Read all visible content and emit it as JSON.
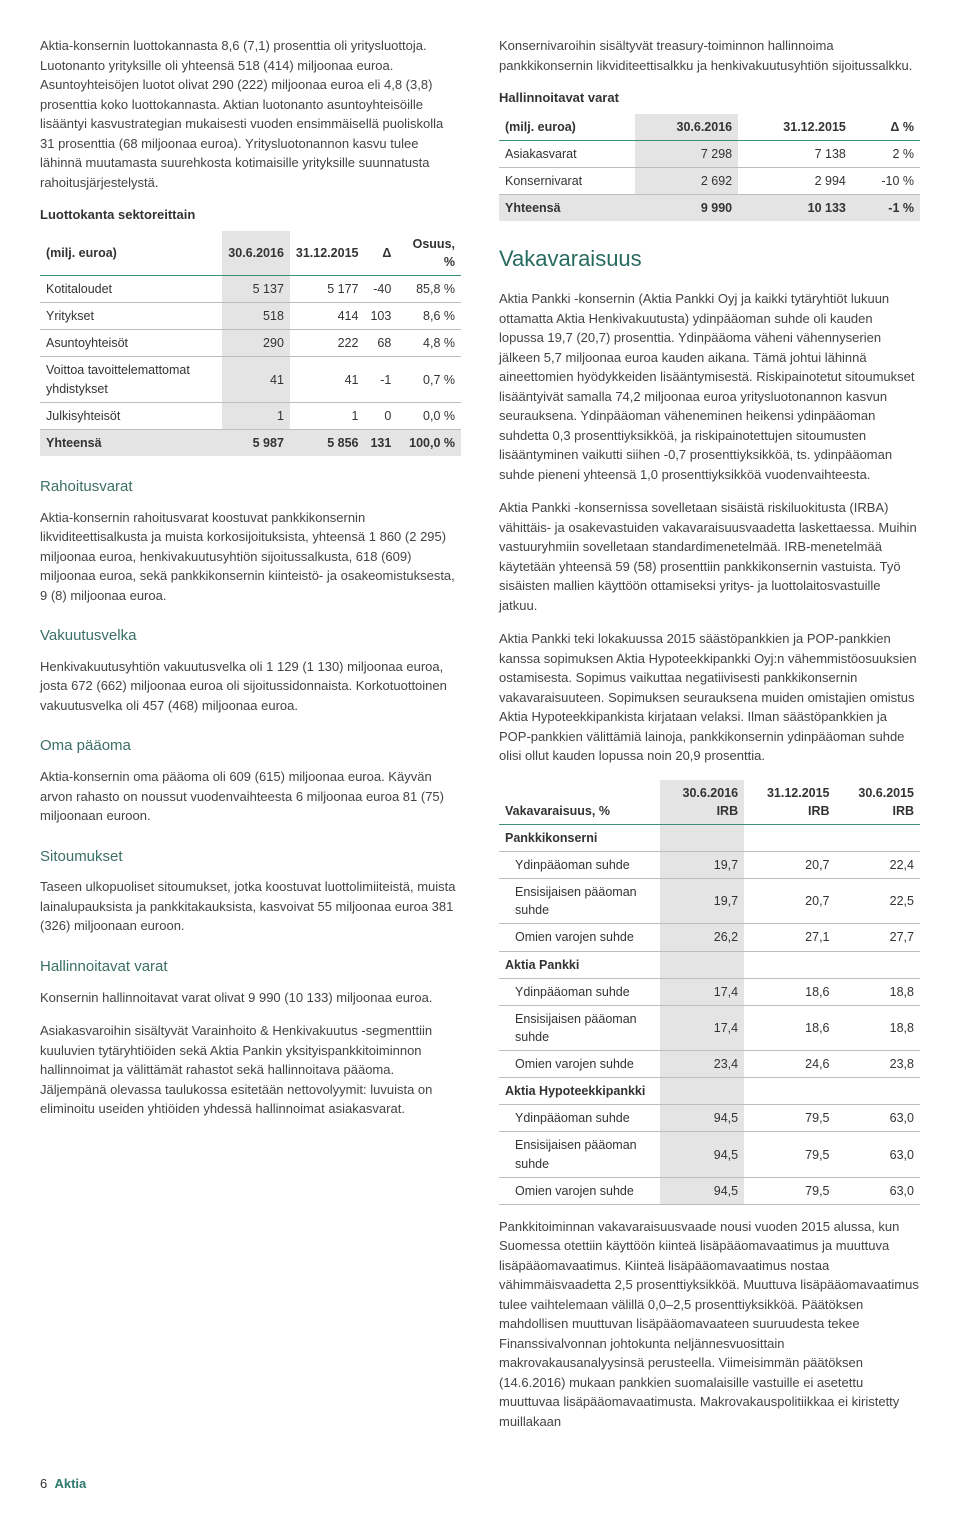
{
  "colors": {
    "heading_green": "#276a5f",
    "subheading_green": "#3b6f66",
    "rule_green": "#3f8d7f",
    "shade_gray": "#e4e4e4",
    "border_gray": "#bdbdbd",
    "body_text": "#333333",
    "background": "#ffffff"
  },
  "left": {
    "para1": "Aktia-konsernin luottokannasta 8,6 (7,1) prosenttia oli yritysluottoja. Luotonanto yrityksille oli yhteensä 518 (414) miljoonaa euroa. Asuntoyhteisöjen luotot olivat 290 (222) miljoonaa euroa eli 4,8 (3,8) prosenttia koko luottokannasta. Aktian luotonanto asuntoyhteisöille lisääntyi kasvustrategian mukaisesti vuoden ensimmäisellä puoliskolla 31 prosenttia (68 miljoonaa euroa). Yritysluotonannon kasvu tulee lähinnä muutamasta suurehkosta kotimaisille yrityksille suunnatusta rahoitusjärjestelystä.",
    "sector_title": "Luottokanta sektoreittain",
    "sector_table": {
      "columns": [
        "(milj. euroa)",
        "30.6.2016",
        "31.12.2015",
        "Δ",
        "Osuus, %"
      ],
      "col_align": [
        "left",
        "right",
        "right",
        "right",
        "right"
      ],
      "rows": [
        [
          "Kotitaloudet",
          "5 137",
          "5 177",
          "-40",
          "85,8 %"
        ],
        [
          "Yritykset",
          "518",
          "414",
          "103",
          "8,6 %"
        ],
        [
          "Asuntoyhteisöt",
          "290",
          "222",
          "68",
          "4,8 %"
        ],
        [
          "Voittoa tavoittelemattomat yhdistykset",
          "41",
          "41",
          "-1",
          "0,7 %"
        ],
        [
          "Julkisyhteisöt",
          "1",
          "1",
          "0",
          "0,0 %"
        ]
      ],
      "total": [
        "Yhteensä",
        "5 987",
        "5 856",
        "131",
        "100,0 %"
      ]
    },
    "h_rahoitusvarat": "Rahoitusvarat",
    "p_rahoitusvarat": "Aktia-konsernin rahoitusvarat koostuvat pankkikonsernin likviditeettisalkusta ja muista korkosijoituksista, yhteensä 1 860 (2 295) miljoonaa euroa, henkivakuutusyhtiön sijoitussalkusta, 618 (609) miljoonaa euroa, sekä pankkikonsernin kiinteistö- ja osakeomistuksesta, 9 (8) miljoonaa euroa.",
    "h_vakuutusvelka": "Vakuutusvelka",
    "p_vakuutusvelka": "Henkivakuutusyhtiön vakuutusvelka oli 1 129 (1 130) miljoonaa euroa, josta 672 (662) miljoonaa euroa oli sijoitussidonnaista. Korkotuottoinen vakuutusvelka oli 457 (468) miljoonaa euroa.",
    "h_oma": "Oma pääoma",
    "p_oma": "Aktia-konsernin oma pääoma oli 609 (615) miljoonaa euroa. Käyvän arvon rahasto on noussut vuodenvaihteesta 6 miljoonaa euroa 81 (75) miljoonaan euroon.",
    "h_sitoumukset": "Sitoumukset",
    "p_sitoumukset": "Taseen ulkopuoliset sitoumukset, jotka koostuvat luottolimiiteistä, muista lainalupauksista ja pankkitakauksista, kasvoivat 55 miljoonaa euroa 381 (326) miljoonaan euroon.",
    "h_hallinnoitavat": "Hallinnoitavat varat",
    "p_hallinnoitavat1": "Konsernin hallinnoitavat varat olivat 9 990 (10 133) miljoonaa euroa.",
    "p_hallinnoitavat2": "Asiakasvaroihin sisältyvät Varainhoito & Henkivakuutus -segmenttiin kuuluvien tytäryhtiöiden sekä Aktia Pankin yksityispankkitoiminnon hallinnoimat ja välittämät rahastot sekä hallinnoitava pääoma. Jäljempänä olevassa taulukossa esitetään nettovolyymit: luvuista on eliminoitu useiden yhtiöiden yhdessä hallinnoimat asiakasvarat."
  },
  "right": {
    "p_top": "Konsernivaroihin sisältyvät treasury-toiminnon hallinnoima pankkikonsernin likviditeettisalkku ja henkivakuutusyhtiön sijoitussalkku.",
    "hv_title": "Hallinnoitavat varat",
    "hv_table": {
      "columns": [
        "(milj. euroa)",
        "30.6.2016",
        "31.12.2015",
        "Δ %"
      ],
      "rows": [
        [
          "Asiakasvarat",
          "7 298",
          "7 138",
          "2 %"
        ],
        [
          "Konsernivarat",
          "2 692",
          "2 994",
          "-10 %"
        ]
      ],
      "total": [
        "Yhteensä",
        "9 990",
        "10 133",
        "-1 %"
      ]
    },
    "h_vaka": "Vakavaraisuus",
    "p_vaka1": "Aktia Pankki -konsernin (Aktia Pankki Oyj ja kaikki tytäryhtiöt lukuun ottamatta Aktia Henkivakuutusta) ydinpääoman suhde oli kauden lopussa 19,7 (20,7) prosenttia. Ydinpääoma väheni vähennyserien jälkeen 5,7 miljoonaa euroa kauden aikana. Tämä johtui lähinnä aineettomien hyödykkeiden lisääntymisestä. Riskipainotetut sitoumukset lisääntyivät samalla 74,2 miljoonaa euroa yritysluotonannon kasvun seurauksena. Ydinpääoman väheneminen heikensi ydinpääoman suhdetta 0,3 prosenttiyksikköä, ja riskipainotettujen sitoumusten lisääntyminen vaikutti siihen -0,7 prosenttiyksikköä, ts. ydinpääoman suhde pieneni yhteensä 1,0 prosenttiyksikköä vuodenvaihteesta.",
    "p_vaka2": "Aktia Pankki -konsernissa sovelletaan sisäistä riskiluokitusta (IRBA) vähittäis- ja osakevastuiden vakavaraisuusvaadetta laskettaessa. Muihin vastuuryhmiin sovelletaan standardimenetelmää. IRB-menetelmää käytetään yhteensä 59 (58) prosenttiin pankkikonsernin vastuista. Työ sisäisten mallien käyttöön ottamiseksi yritys- ja luottolaitosvastuille jatkuu.",
    "p_vaka3": "Aktia Pankki teki lokakuussa 2015 säästöpankkien ja POP-pankkien kanssa sopimuksen Aktia Hypoteekkipankki Oyj:n vähemmistöosuuksien ostamisesta. Sopimus vaikuttaa negatiivisesti pankkikonsernin vakavaraisuuteen. Sopimuksen seurauksena muiden omistajien omistus Aktia Hypoteekkipankista kirjataan velaksi. Ilman säästöpankkien ja POP-pankkien välittämiä lainoja, pankkikonsernin ydinpääoman suhde olisi ollut kauden lopussa noin 20,9 prosenttia.",
    "vaka_table": {
      "columns": [
        "Vakavaraisuus, %",
        "30.6.2016 IRB",
        "31.12.2015 IRB",
        "30.6.2015 IRB"
      ],
      "groups": [
        {
          "name": "Pankkikonserni",
          "rows": [
            [
              "Ydinpääoman suhde",
              "19,7",
              "20,7",
              "22,4"
            ],
            [
              "Ensisijaisen pääoman suhde",
              "19,7",
              "20,7",
              "22,5"
            ],
            [
              "Omien varojen suhde",
              "26,2",
              "27,1",
              "27,7"
            ]
          ]
        },
        {
          "name": "Aktia Pankki",
          "rows": [
            [
              "Ydinpääoman suhde",
              "17,4",
              "18,6",
              "18,8"
            ],
            [
              "Ensisijaisen pääoman suhde",
              "17,4",
              "18,6",
              "18,8"
            ],
            [
              "Omien varojen suhde",
              "23,4",
              "24,6",
              "23,8"
            ]
          ]
        },
        {
          "name": "Aktia Hypoteekkipankki",
          "rows": [
            [
              "Ydinpääoman suhde",
              "94,5",
              "79,5",
              "63,0"
            ],
            [
              "Ensisijaisen pääoman suhde",
              "94,5",
              "79,5",
              "63,0"
            ],
            [
              "Omien varojen suhde",
              "94,5",
              "79,5",
              "63,0"
            ]
          ]
        }
      ]
    },
    "p_vaka4": "Pankkitoiminnan vakavaraisuusvaade nousi vuoden 2015 alussa, kun Suomessa otettiin käyttöön kiinteä lisäpääomavaatimus ja muuttuva lisäpääomavaatimus. Kiinteä lisäpääomavaatimus nostaa vähimmäisvaadetta 2,5 prosenttiyksikköä. Muuttuva lisäpääomavaatimus tulee vaihtelemaan välillä 0,0–2,5 prosenttiyksikköä. Päätöksen mahdollisen muuttuvan lisäpääomavaateen suuruudesta tekee Finanssivalvonnan johtokunta neljännesvuosittain makrovakausanalyysinsä perusteella. Viimeisimmän päätöksen (14.6.2016) mukaan pankkien suomalaisille vastuille ei asetettu muuttuvaa lisäpääomavaatimusta. Makrovakauspolitiikkaa ei kiristetty muillakaan"
  },
  "footer": {
    "page": "6",
    "brand": "Aktia"
  }
}
